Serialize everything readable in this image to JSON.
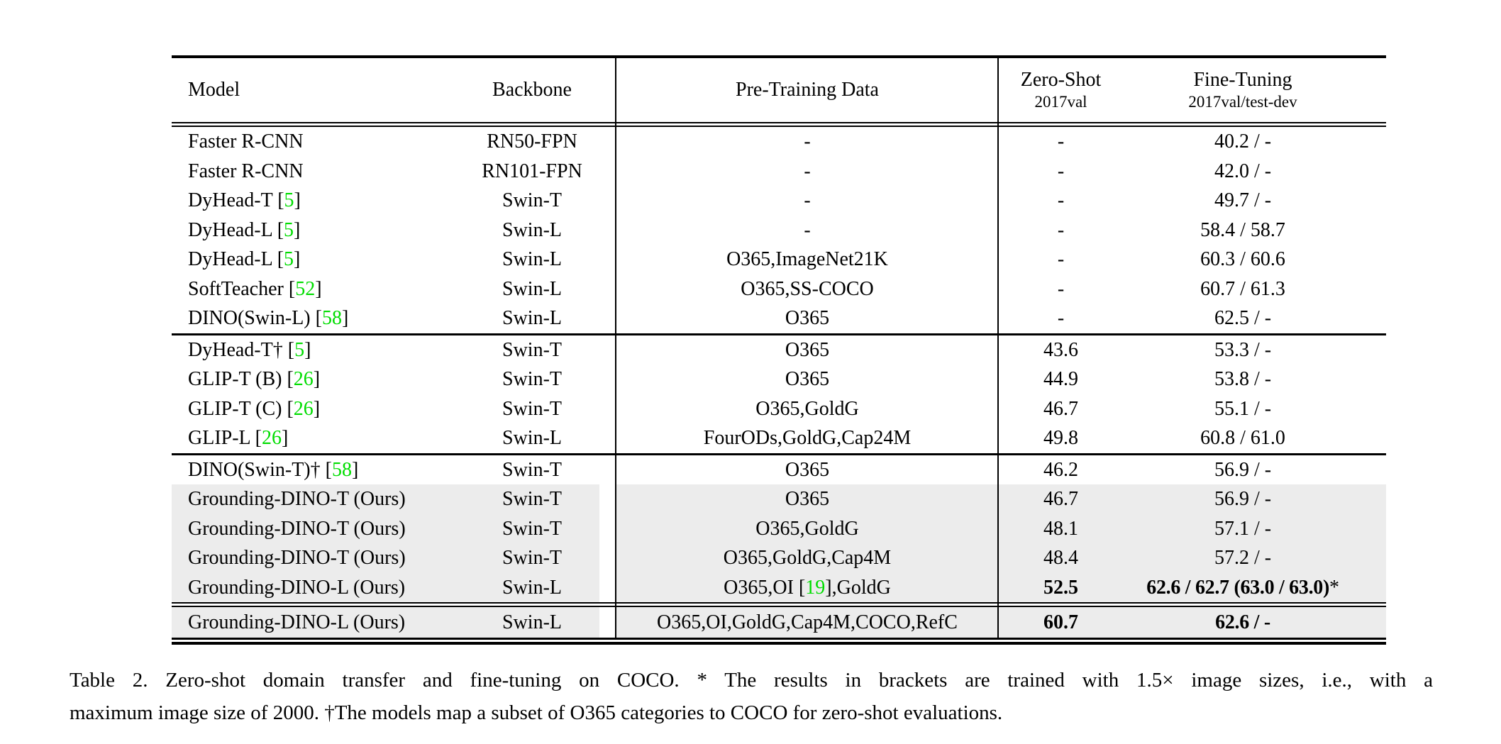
{
  "colors": {
    "citation_green": "#00dd00",
    "row_highlight": "#ececec"
  },
  "header": {
    "model": "Model",
    "backbone": "Backbone",
    "pretrain": "Pre-Training Data",
    "zeroshot_line1": "Zero-Shot",
    "zeroshot_line2": "2017val",
    "finetune_line1": "Fine-Tuning",
    "finetune_line2": "2017val/test-dev"
  },
  "rows": [
    {
      "model": [
        [
          "Faster R-CNN",
          0
        ]
      ],
      "backbone": "RN50-FPN",
      "pretrain": [
        [
          "-",
          0
        ]
      ],
      "zeroshot": "-",
      "finetune": [
        [
          "40.2 / -",
          0
        ]
      ]
    },
    {
      "model": [
        [
          "Faster R-CNN",
          0
        ]
      ],
      "backbone": "RN101-FPN",
      "pretrain": [
        [
          "-",
          0
        ]
      ],
      "zeroshot": "-",
      "finetune": [
        [
          "42.0 / -",
          0
        ]
      ]
    },
    {
      "model": [
        [
          "DyHead-T ",
          0
        ],
        [
          "[",
          0
        ],
        [
          "5",
          1
        ],
        [
          "]",
          0
        ]
      ],
      "backbone": "Swin-T",
      "pretrain": [
        [
          "-",
          0
        ]
      ],
      "zeroshot": "-",
      "finetune": [
        [
          "49.7 / -",
          0
        ]
      ]
    },
    {
      "model": [
        [
          "DyHead-L ",
          0
        ],
        [
          "[",
          0
        ],
        [
          "5",
          1
        ],
        [
          "]",
          0
        ]
      ],
      "backbone": "Swin-L",
      "pretrain": [
        [
          "-",
          0
        ]
      ],
      "zeroshot": "-",
      "finetune": [
        [
          "58.4 / 58.7",
          0
        ]
      ]
    },
    {
      "model": [
        [
          "DyHead-L ",
          0
        ],
        [
          "[",
          0
        ],
        [
          "5",
          1
        ],
        [
          "]",
          0
        ]
      ],
      "backbone": "Swin-L",
      "pretrain": [
        [
          "O365,ImageNet21K",
          0
        ]
      ],
      "zeroshot": "-",
      "finetune": [
        [
          "60.3 / 60.6",
          0
        ]
      ]
    },
    {
      "model": [
        [
          "SoftTeacher ",
          0
        ],
        [
          "[",
          0
        ],
        [
          "52",
          1
        ],
        [
          "]",
          0
        ]
      ],
      "backbone": "Swin-L",
      "pretrain": [
        [
          "O365,SS-COCO",
          0
        ]
      ],
      "zeroshot": "-",
      "finetune": [
        [
          "60.7 / 61.3",
          0
        ]
      ]
    },
    {
      "model": [
        [
          "DINO(Swin-L) ",
          0
        ],
        [
          "[",
          0
        ],
        [
          "58",
          1
        ],
        [
          "]",
          0
        ]
      ],
      "backbone": "Swin-L",
      "pretrain": [
        [
          "O365",
          0
        ]
      ],
      "zeroshot": "-",
      "finetune": [
        [
          "62.5 / -",
          0
        ]
      ]
    },
    {
      "model": [
        [
          "DyHead-T† ",
          0
        ],
        [
          "[",
          0
        ],
        [
          "5",
          1
        ],
        [
          "]",
          0
        ]
      ],
      "backbone": "Swin-T",
      "pretrain": [
        [
          "O365",
          0
        ]
      ],
      "zeroshot": "43.6",
      "finetune": [
        [
          "53.3 / -",
          0
        ]
      ]
    },
    {
      "model": [
        [
          "GLIP-T (B) ",
          0
        ],
        [
          "[",
          0
        ],
        [
          "26",
          1
        ],
        [
          "]",
          0
        ]
      ],
      "backbone": "Swin-T",
      "pretrain": [
        [
          "O365",
          0
        ]
      ],
      "zeroshot": "44.9",
      "finetune": [
        [
          "53.8 / -",
          0
        ]
      ]
    },
    {
      "model": [
        [
          "GLIP-T (C) ",
          0
        ],
        [
          "[",
          0
        ],
        [
          "26",
          1
        ],
        [
          "]",
          0
        ]
      ],
      "backbone": "Swin-T",
      "pretrain": [
        [
          "O365,GoldG",
          0
        ]
      ],
      "zeroshot": "46.7",
      "finetune": [
        [
          "55.1 / -",
          0
        ]
      ]
    },
    {
      "model": [
        [
          "GLIP-L ",
          0
        ],
        [
          "[",
          0
        ],
        [
          "26",
          1
        ],
        [
          "]",
          0
        ]
      ],
      "backbone": "Swin-L",
      "pretrain": [
        [
          "FourODs,GoldG,Cap24M",
          0
        ]
      ],
      "zeroshot": "49.8",
      "finetune": [
        [
          "60.8 / 61.0",
          0
        ]
      ]
    },
    {
      "model": [
        [
          "DINO(Swin-T)† ",
          0
        ],
        [
          "[",
          0
        ],
        [
          "58",
          1
        ],
        [
          "]",
          0
        ]
      ],
      "backbone": "Swin-T",
      "pretrain": [
        [
          "O365",
          0
        ]
      ],
      "zeroshot": "46.2",
      "finetune": [
        [
          "56.9 / -",
          0
        ]
      ]
    },
    {
      "model": [
        [
          "Grounding-DINO-T (Ours)",
          0
        ]
      ],
      "backbone": "Swin-T",
      "pretrain": [
        [
          "O365",
          0
        ]
      ],
      "zeroshot": "46.7",
      "finetune": [
        [
          "56.9 / -",
          0
        ]
      ]
    },
    {
      "model": [
        [
          "Grounding-DINO-T (Ours)",
          0
        ]
      ],
      "backbone": "Swin-T",
      "pretrain": [
        [
          "O365,GoldG",
          0
        ]
      ],
      "zeroshot": "48.1",
      "finetune": [
        [
          "57.1 / -",
          0
        ]
      ]
    },
    {
      "model": [
        [
          "Grounding-DINO-T (Ours)",
          0
        ]
      ],
      "backbone": "Swin-T",
      "pretrain": [
        [
          "O365,GoldG,Cap4M",
          0
        ]
      ],
      "zeroshot": "48.4",
      "finetune": [
        [
          "57.2 / -",
          0
        ]
      ]
    },
    {
      "model": [
        [
          "Grounding-DINO-L (Ours)",
          0
        ]
      ],
      "backbone": "Swin-L",
      "pretrain": [
        [
          "O365,OI ",
          0
        ],
        [
          "[",
          0
        ],
        [
          "19",
          1
        ],
        [
          "]",
          0
        ],
        [
          ",GoldG",
          0
        ]
      ],
      "zeroshot": "52.5",
      "finetune": [
        [
          "62.6 / 62.7 (63.0 / 63.0)",
          0
        ],
        [
          "*",
          2
        ]
      ]
    },
    {
      "model": [
        [
          "Grounding-DINO-L (Ours)",
          0
        ]
      ],
      "backbone": "Swin-L",
      "pretrain": [
        [
          "O365,OI,GoldG,Cap4M,COCO,RefC",
          0
        ]
      ],
      "zeroshot": "60.7",
      "finetune": [
        [
          "62.6 / -",
          0
        ]
      ]
    }
  ],
  "caption": {
    "line1": "Table 2. Zero-shot domain transfer and fine-tuning on COCO. * The results in brackets are trained with 1.5× image sizes, i.e., with a",
    "line2": "maximum image size of 2000. †The models map a subset of O365 categories to COCO for zero-shot evaluations."
  }
}
